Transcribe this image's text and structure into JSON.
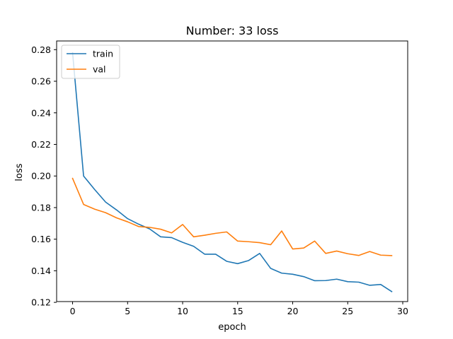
{
  "chart_data": {
    "type": "line",
    "title": "Number: 33 loss",
    "xlabel": "epoch",
    "ylabel": "loss",
    "xlim": [
      -1.45,
      30.45
    ],
    "ylim": [
      0.1205,
      0.2855
    ],
    "xticks": [
      0,
      5,
      10,
      15,
      20,
      25,
      30
    ],
    "yticks": [
      0.12,
      0.14,
      0.16,
      0.18,
      0.2,
      0.22,
      0.24,
      0.26,
      0.28
    ],
    "xtick_labels": [
      "0",
      "5",
      "10",
      "15",
      "20",
      "25",
      "30"
    ],
    "ytick_labels": [
      "0.12",
      "0.14",
      "0.16",
      "0.18",
      "0.20",
      "0.22",
      "0.24",
      "0.26",
      "0.28"
    ],
    "grid": false,
    "legend_position": "top-left",
    "x": [
      0,
      1,
      2,
      3,
      4,
      5,
      6,
      7,
      8,
      9,
      10,
      11,
      12,
      13,
      14,
      15,
      16,
      17,
      18,
      19,
      20,
      21,
      22,
      23,
      24,
      25,
      26,
      27,
      28,
      29
    ],
    "series": [
      {
        "name": "train",
        "color": "#1f77b4",
        "values": [
          0.278,
          0.2,
          0.1915,
          0.1835,
          0.1785,
          0.173,
          0.1695,
          0.1665,
          0.1615,
          0.161,
          0.158,
          0.1555,
          0.1505,
          0.1505,
          0.146,
          0.1445,
          0.1465,
          0.151,
          0.1415,
          0.1385,
          0.1378,
          0.1363,
          0.1337,
          0.1338,
          0.1347,
          0.1331,
          0.1328,
          0.1308,
          0.1313,
          0.1268
        ]
      },
      {
        "name": "val",
        "color": "#ff7f0e",
        "values": [
          0.1985,
          0.182,
          0.179,
          0.1768,
          0.1735,
          0.171,
          0.168,
          0.1675,
          0.1663,
          0.164,
          0.1693,
          0.1615,
          0.1625,
          0.1637,
          0.1646,
          0.1588,
          0.1584,
          0.1578,
          0.1565,
          0.1652,
          0.1538,
          0.1544,
          0.1588,
          0.151,
          0.1525,
          0.1508,
          0.1497,
          0.1522,
          0.1499,
          0.1496
        ]
      }
    ]
  }
}
